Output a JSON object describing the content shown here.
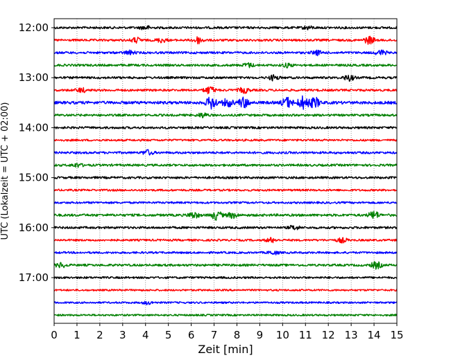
{
  "chart_data": {
    "type": "line",
    "title": "",
    "xlabel": "Zeit  [min]",
    "ylabel": "UTC (Lokalzeit = UTC + 02:00)",
    "xlim": [
      0,
      15
    ],
    "x_ticks": [
      "0",
      "1",
      "2",
      "3",
      "4",
      "5",
      "6",
      "7",
      "8",
      "9",
      "10",
      "11",
      "12",
      "13",
      "14",
      "15"
    ],
    "y_ticks": [
      "12:00",
      "13:00",
      "14:00",
      "15:00",
      "16:00",
      "17:00"
    ],
    "grid": "vertical dotted",
    "row_minutes": 15,
    "color_cycle": [
      "#000000",
      "#ff0000",
      "#0000ff",
      "#008000"
    ],
    "series": [
      {
        "start": "12:00",
        "color": "black",
        "amplitude": 1.0,
        "bursts": [
          [
            4.0,
            1.2
          ],
          [
            11.1,
            1.0
          ]
        ]
      },
      {
        "start": "12:15",
        "color": "red",
        "amplitude": 1.0,
        "bursts": [
          [
            3.6,
            1.6
          ],
          [
            4.7,
            1.3
          ],
          [
            6.3,
            2.2
          ],
          [
            13.8,
            2.5
          ]
        ]
      },
      {
        "start": "12:30",
        "color": "blue",
        "amplitude": 1.0,
        "bursts": [
          [
            3.3,
            1.2
          ],
          [
            11.5,
            1.4
          ],
          [
            14.3,
            1.6
          ]
        ]
      },
      {
        "start": "12:45",
        "color": "green",
        "amplitude": 1.0,
        "bursts": [
          [
            8.5,
            1.3
          ],
          [
            10.2,
            1.2
          ]
        ]
      },
      {
        "start": "13:00",
        "color": "black",
        "amplitude": 1.0,
        "bursts": [
          [
            9.6,
            1.6
          ],
          [
            12.9,
            1.8
          ]
        ]
      },
      {
        "start": "13:15",
        "color": "red",
        "amplitude": 1.0,
        "bursts": [
          [
            1.2,
            1.4
          ],
          [
            6.8,
            2.4
          ],
          [
            8.3,
            1.8
          ]
        ]
      },
      {
        "start": "13:30",
        "color": "blue",
        "amplitude": 1.3,
        "bursts": [
          [
            6.9,
            3.2
          ],
          [
            7.6,
            2.0
          ],
          [
            8.3,
            2.6
          ],
          [
            10.2,
            2.6
          ],
          [
            10.9,
            3.2
          ],
          [
            11.4,
            2.6
          ]
        ]
      },
      {
        "start": "13:45",
        "color": "green",
        "amplitude": 1.0,
        "bursts": [
          [
            6.5,
            1.4
          ]
        ]
      },
      {
        "start": "14:00",
        "color": "black",
        "amplitude": 1.0,
        "bursts": []
      },
      {
        "start": "14:15",
        "color": "red",
        "amplitude": 0.9,
        "bursts": []
      },
      {
        "start": "14:30",
        "color": "blue",
        "amplitude": 1.0,
        "bursts": [
          [
            4.1,
            1.6
          ]
        ]
      },
      {
        "start": "14:45",
        "color": "green",
        "amplitude": 1.0,
        "bursts": [
          [
            1.0,
            1.2
          ]
        ]
      },
      {
        "start": "15:00",
        "color": "black",
        "amplitude": 1.0,
        "bursts": []
      },
      {
        "start": "15:15",
        "color": "red",
        "amplitude": 0.9,
        "bursts": []
      },
      {
        "start": "15:30",
        "color": "blue",
        "amplitude": 0.9,
        "bursts": []
      },
      {
        "start": "15:45",
        "color": "green",
        "amplitude": 1.1,
        "bursts": [
          [
            6.1,
            1.8
          ],
          [
            7.1,
            2.6
          ],
          [
            7.8,
            1.6
          ],
          [
            14.0,
            2.2
          ]
        ]
      },
      {
        "start": "16:00",
        "color": "black",
        "amplitude": 1.0,
        "bursts": [
          [
            10.5,
            1.3
          ]
        ]
      },
      {
        "start": "16:15",
        "color": "red",
        "amplitude": 0.9,
        "bursts": [
          [
            9.5,
            1.6
          ],
          [
            12.6,
            1.6
          ]
        ]
      },
      {
        "start": "16:30",
        "color": "blue",
        "amplitude": 0.9,
        "bursts": [
          [
            9.6,
            1.3
          ]
        ]
      },
      {
        "start": "16:45",
        "color": "green",
        "amplitude": 1.0,
        "bursts": [
          [
            0.3,
            1.5
          ],
          [
            14.1,
            2.2
          ]
        ]
      },
      {
        "start": "17:00",
        "color": "black",
        "amplitude": 0.9,
        "bursts": []
      },
      {
        "start": "17:15",
        "color": "red",
        "amplitude": 0.8,
        "bursts": []
      },
      {
        "start": "17:30",
        "color": "blue",
        "amplitude": 0.8,
        "bursts": [
          [
            4.1,
            1.3
          ]
        ]
      },
      {
        "start": "17:45",
        "color": "green",
        "amplitude": 0.8,
        "bursts": []
      }
    ]
  }
}
